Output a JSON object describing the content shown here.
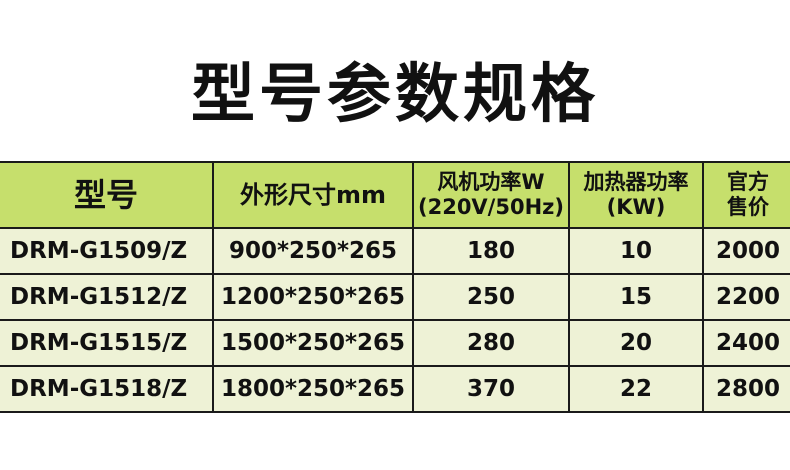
{
  "title": "型号参数规格",
  "table": {
    "headers": [
      {
        "line1": "型号",
        "line2": ""
      },
      {
        "line1": "外形尺寸mm",
        "line2": ""
      },
      {
        "line1": "风机功率W",
        "line2": "(220V/50Hz)"
      },
      {
        "line1": "加热器功率",
        "line2": "(KW)"
      },
      {
        "line1": "官方",
        "line2": "售价"
      }
    ],
    "rows": [
      [
        "DRM-G1509/Z",
        "900*250*265",
        "180",
        "10",
        "2000"
      ],
      [
        "DRM-G1512/Z",
        "1200*250*265",
        "250",
        "15",
        "2200"
      ],
      [
        "DRM-G1515/Z",
        "1500*250*265",
        "280",
        "20",
        "2400"
      ],
      [
        "DRM-G1518/Z",
        "1800*250*265",
        "370",
        "22",
        "2800"
      ]
    ]
  },
  "colors": {
    "header_bg": "#c6df6c",
    "row_bg": "#eef2d6",
    "border": "#1a1a1a"
  }
}
